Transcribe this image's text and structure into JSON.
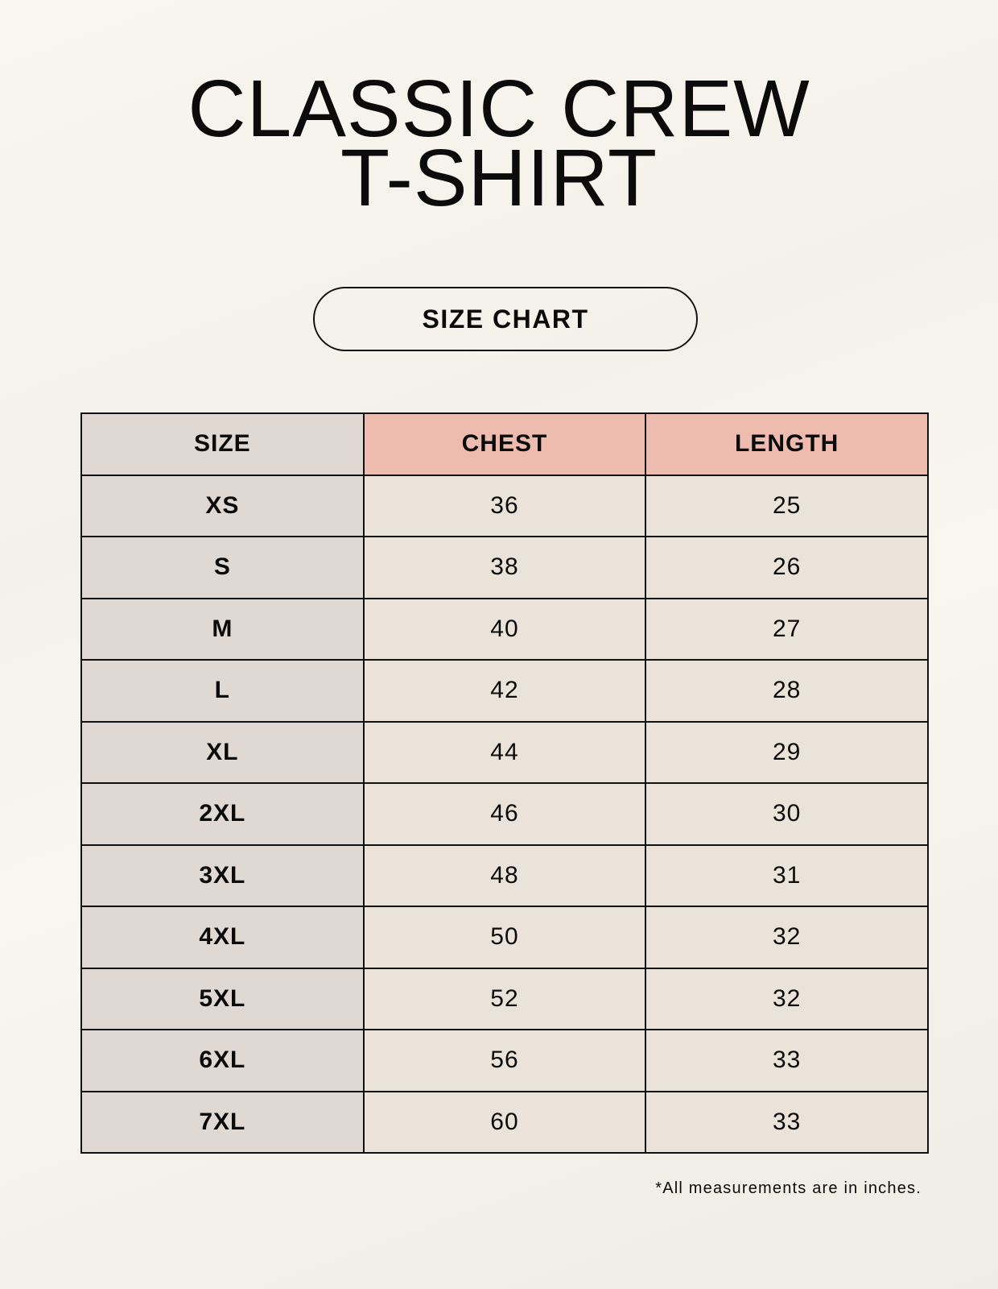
{
  "title": {
    "line1": "CLASSIC CREW",
    "line2": "T-SHIRT"
  },
  "badge": "SIZE CHART",
  "table": {
    "headers": [
      "SIZE",
      "CHEST",
      "LENGTH"
    ],
    "rows": [
      [
        "XS",
        "36",
        "25"
      ],
      [
        "S",
        "38",
        "26"
      ],
      [
        "M",
        "40",
        "27"
      ],
      [
        "L",
        "42",
        "28"
      ],
      [
        "XL",
        "44",
        "29"
      ],
      [
        "2XL",
        "46",
        "30"
      ],
      [
        "3XL",
        "48",
        "31"
      ],
      [
        "4XL",
        "50",
        "32"
      ],
      [
        "5XL",
        "52",
        "32"
      ],
      [
        "6XL",
        "56",
        "33"
      ],
      [
        "7XL",
        "60",
        "33"
      ]
    ]
  },
  "footnote": "*All measurements are in inches.",
  "colors": {
    "header_accent": "#eebcae",
    "size_column": "#e0d9d3",
    "value_cells": "#ebe3d9",
    "background": "#f8f6f0"
  }
}
